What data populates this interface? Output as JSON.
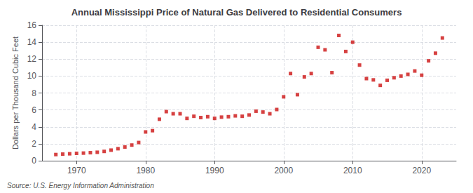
{
  "chart_data": {
    "type": "scatter",
    "title": "Annual Mississippi Price of Natural Gas Delivered to Residential Consumers",
    "ylabel": "Dollars per Thousand Cubic Feet",
    "source": "Source: U.S. Energy Information Administration",
    "x": [
      1967,
      1968,
      1969,
      1970,
      1971,
      1972,
      1973,
      1974,
      1975,
      1976,
      1977,
      1978,
      1979,
      1980,
      1981,
      1982,
      1983,
      1984,
      1985,
      1986,
      1987,
      1988,
      1989,
      1990,
      1991,
      1992,
      1993,
      1994,
      1995,
      1996,
      1997,
      1998,
      1999,
      2000,
      2001,
      2002,
      2003,
      2004,
      2005,
      2006,
      2007,
      2008,
      2009,
      2010,
      2011,
      2012,
      2013,
      2014,
      2015,
      2016,
      2017,
      2018,
      2019,
      2020,
      2021,
      2022,
      2023
    ],
    "values": [
      0.73,
      0.78,
      0.82,
      0.87,
      0.9,
      0.95,
      1.0,
      1.1,
      1.25,
      1.42,
      1.62,
      1.85,
      2.15,
      3.4,
      3.55,
      4.9,
      5.8,
      5.55,
      5.55,
      5.0,
      5.25,
      5.1,
      5.2,
      5.0,
      5.15,
      5.2,
      5.3,
      5.25,
      5.4,
      5.85,
      5.75,
      5.55,
      6.05,
      7.55,
      10.3,
      7.8,
      9.9,
      10.3,
      13.4,
      13.1,
      10.4,
      14.8,
      12.9,
      14.0,
      11.3,
      9.7,
      9.55,
      8.9,
      9.5,
      9.8,
      10.0,
      10.2,
      10.6,
      10.1,
      11.8,
      12.7,
      14.5
    ],
    "color": "#cc1111",
    "marker": "square",
    "xlim": [
      1965,
      2025
    ],
    "xticks": [
      1970,
      1980,
      1990,
      2000,
      2010,
      2020
    ],
    "ylim": [
      0,
      16
    ],
    "yticks": [
      0,
      2,
      4,
      6,
      8,
      10,
      12,
      14,
      16
    ],
    "grid": true
  }
}
